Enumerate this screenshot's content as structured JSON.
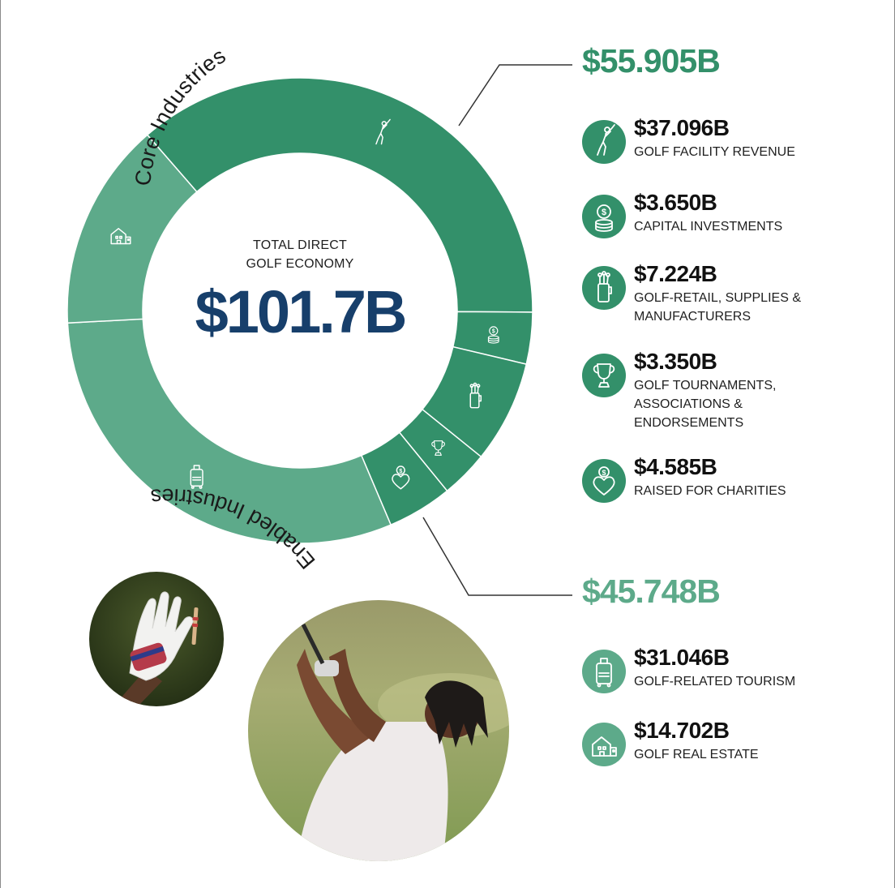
{
  "colors": {
    "core": "#33906a",
    "enabled": "#5daa8a",
    "center_text": "#173f6b",
    "divider": "#ffffff"
  },
  "center": {
    "label_line1": "TOTAL DIRECT",
    "label_line2": "GOLF ECONOMY",
    "total": "$101.7B"
  },
  "chart_data": {
    "type": "pie",
    "title": "",
    "total": 101.7,
    "unit": "$B",
    "groups": [
      {
        "name": "Core Industries",
        "total": 55.905
      },
      {
        "name": "Enabled Industries",
        "total": 45.748
      }
    ],
    "slices": [
      {
        "label": "GOLF FACILITY REVENUE",
        "value": 37.096,
        "group": "Core Industries",
        "icon": "golfer-icon"
      },
      {
        "label": "CAPITAL INVESTMENTS",
        "value": 3.65,
        "group": "Core Industries",
        "icon": "coin-stack-icon"
      },
      {
        "label": "GOLF-RETAIL, SUPPLIES & MANUFACTURERS",
        "value": 7.224,
        "group": "Core Industries",
        "icon": "golf-bag-icon"
      },
      {
        "label": "GOLF TOURNAMENTS, ASSOCIATIONS & ENDORSEMENTS",
        "value": 3.35,
        "group": "Core Industries",
        "icon": "trophy-icon"
      },
      {
        "label": "RAISED FOR CHARITIES",
        "value": 4.585,
        "group": "Core Industries",
        "icon": "charity-heart-icon"
      },
      {
        "label": "GOLF-RELATED TOURISM",
        "value": 31.046,
        "group": "Enabled Industries",
        "icon": "luggage-icon"
      },
      {
        "label": "GOLF REAL ESTATE",
        "value": 14.702,
        "group": "Enabled Industries",
        "icon": "house-icon"
      }
    ]
  },
  "core": {
    "arc_label": "Core Industries",
    "total": "$55.905B",
    "items": [
      {
        "value": "$37.096B",
        "label": "GOLF FACILITY REVENUE",
        "icon": "golfer-icon"
      },
      {
        "value": "$3.650B",
        "label": "CAPITAL INVESTMENTS",
        "icon": "coin-stack-icon"
      },
      {
        "value": "$7.224B",
        "label": "GOLF-RETAIL, SUPPLIES & MANUFACTURERS",
        "icon": "golf-bag-icon"
      },
      {
        "value": "$3.350B",
        "label": "GOLF TOURNAMENTS, ASSOCIATIONS & ENDORSEMENTS",
        "icon": "trophy-icon"
      },
      {
        "value": "$4.585B",
        "label": "RAISED FOR CHARITIES",
        "icon": "charity-heart-icon"
      }
    ]
  },
  "enabled": {
    "arc_label": "Enabled Industries",
    "total": "$45.748B",
    "items": [
      {
        "value": "$31.046B",
        "label": "GOLF-RELATED TOURISM",
        "icon": "luggage-icon"
      },
      {
        "value": "$14.702B",
        "label": "GOLF REAL ESTATE",
        "icon": "house-icon"
      }
    ]
  }
}
